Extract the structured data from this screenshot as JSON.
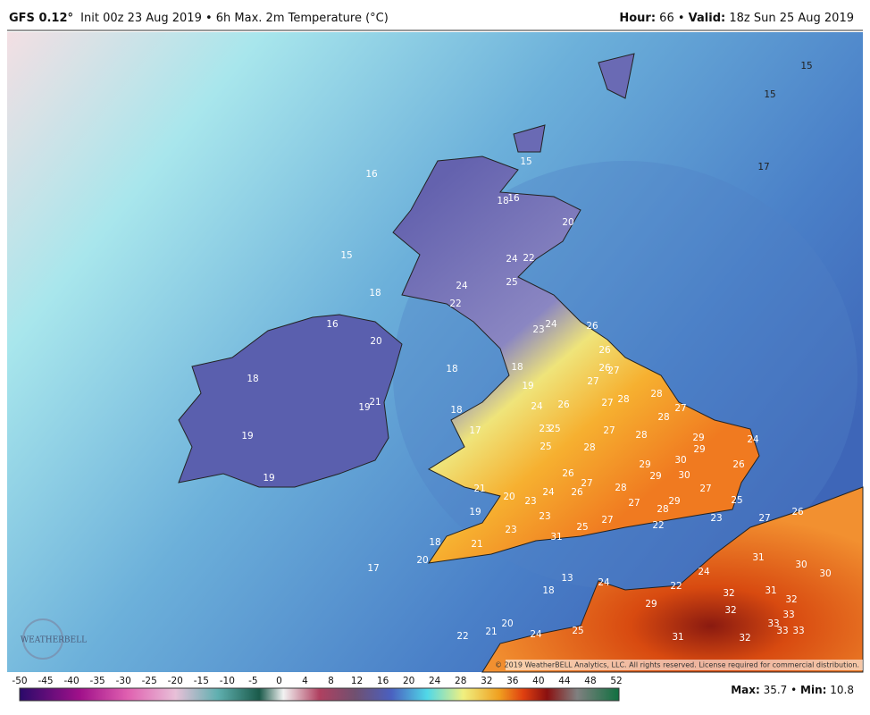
{
  "header": {
    "model": "GFS 0.12°",
    "subtitle": "Init 00z 23 Aug 2019 • 6h Max. 2m Temperature (°C)",
    "hour_label": "Hour:",
    "hour": "66",
    "separator": "•",
    "valid_label": "Valid:",
    "valid": "18z Sun 25 Aug 2019"
  },
  "map_labels": [
    "15",
    "15",
    "17",
    "16",
    "15",
    "16",
    "18",
    "20",
    "15",
    "24",
    "22",
    "18",
    "24",
    "25",
    "22",
    "16",
    "20",
    "24",
    "23",
    "26",
    "26",
    "18",
    "18",
    "26",
    "27",
    "18",
    "27",
    "28",
    "19",
    "21",
    "19",
    "24",
    "26",
    "27",
    "28",
    "27",
    "18",
    "28",
    "17",
    "23",
    "25",
    "27",
    "28",
    "29",
    "24",
    "19",
    "25",
    "28",
    "29",
    "30",
    "26",
    "29",
    "19",
    "26",
    "29",
    "30",
    "27",
    "28",
    "27",
    "21",
    "20",
    "24",
    "26",
    "27",
    "29",
    "25",
    "23",
    "28",
    "19",
    "23",
    "27",
    "23",
    "22",
    "27",
    "26",
    "23",
    "25",
    "18",
    "21",
    "31",
    "31",
    "30",
    "30",
    "20",
    "17",
    "24",
    "13",
    "24",
    "22",
    "18",
    "31",
    "32",
    "32",
    "29",
    "32",
    "33",
    "33",
    "20",
    "33",
    "33",
    "21",
    "24",
    "22",
    "31",
    "32",
    "25"
  ],
  "logo": "WEATHERBELL",
  "copyright": "© 2019 WeatherBELL Analytics, LLC. All rights reserved. License required for commercial distribution.",
  "colorbar_ticks": [
    "-50",
    "-45",
    "-40",
    "-35",
    "-30",
    "-25",
    "-20",
    "-15",
    "-10",
    "-5",
    "0",
    "4",
    "8",
    "12",
    "16",
    "20",
    "24",
    "28",
    "32",
    "36",
    "40",
    "44",
    "48",
    "52"
  ],
  "footer": {
    "max_label": "Max:",
    "max": "35.7",
    "separator": "•",
    "min_label": "Min:",
    "min": "10.8"
  }
}
